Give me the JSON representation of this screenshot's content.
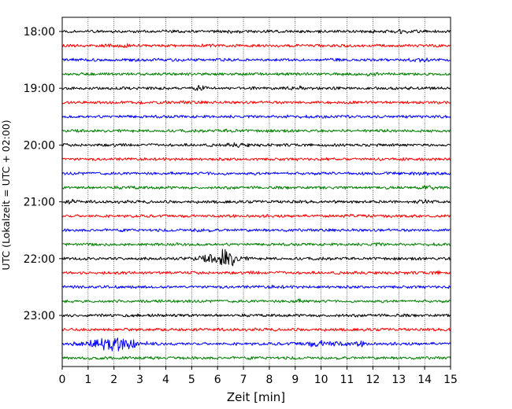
{
  "chart_data": {
    "type": "line",
    "title": "",
    "xlabel": "Zeit  [min]",
    "ylabel": "UTC (Lokalzeit = UTC + 02:00)",
    "xlim": [
      0,
      15
    ],
    "x_ticks": [
      "0",
      "1",
      "2",
      "3",
      "4",
      "5",
      "6",
      "7",
      "8",
      "9",
      "10",
      "11",
      "12",
      "13",
      "14",
      "15"
    ],
    "y_ticks": [
      "18:00",
      "19:00",
      "20:00",
      "21:00",
      "22:00",
      "23:00"
    ],
    "grid": "vertical dotted at each minute",
    "trace_interval_minutes": 15,
    "trace_colors": [
      "#000000",
      "#ff0000",
      "#0000ff",
      "#008000"
    ],
    "series": [
      {
        "start": "18:00",
        "color": "#000000",
        "amplitude": 1.0,
        "events": [
          {
            "t": 6.6,
            "a": 1.6,
            "w": 0.35
          },
          {
            "t": 13.2,
            "a": 1.7,
            "w": 0.4
          }
        ]
      },
      {
        "start": "18:15",
        "color": "#ff0000",
        "amplitude": 1.0,
        "events": [
          {
            "t": 2.3,
            "a": 1.5,
            "w": 0.5
          },
          {
            "t": 5.8,
            "a": 1.3,
            "w": 0.4
          }
        ]
      },
      {
        "start": "18:30",
        "color": "#0000ff",
        "amplitude": 1.0,
        "events": [
          {
            "t": 13.8,
            "a": 1.8,
            "w": 0.3
          },
          {
            "t": 3.0,
            "a": 1.2,
            "w": 0.4
          }
        ]
      },
      {
        "start": "18:45",
        "color": "#008000",
        "amplitude": 1.0,
        "events": [
          {
            "t": 12.0,
            "a": 1.4,
            "w": 0.3
          }
        ]
      },
      {
        "start": "19:00",
        "color": "#000000",
        "amplitude": 1.0,
        "events": [
          {
            "t": 5.3,
            "a": 2.0,
            "w": 0.2
          },
          {
            "t": 9.2,
            "a": 1.6,
            "w": 0.4
          }
        ]
      },
      {
        "start": "19:15",
        "color": "#ff0000",
        "amplitude": 1.0,
        "events": [
          {
            "t": 4.8,
            "a": 1.3,
            "w": 0.4
          }
        ]
      },
      {
        "start": "19:30",
        "color": "#0000ff",
        "amplitude": 1.0,
        "events": [
          {
            "t": 2.5,
            "a": 1.2,
            "w": 0.4
          },
          {
            "t": 8.7,
            "a": 1.3,
            "w": 0.3
          }
        ]
      },
      {
        "start": "19:45",
        "color": "#008000",
        "amplitude": 1.0,
        "events": [
          {
            "t": 6.5,
            "a": 1.5,
            "w": 0.25
          }
        ]
      },
      {
        "start": "20:00",
        "color": "#000000",
        "amplitude": 1.0,
        "events": [
          {
            "t": 6.8,
            "a": 1.7,
            "w": 0.4
          },
          {
            "t": 2.0,
            "a": 1.2,
            "w": 0.4
          }
        ]
      },
      {
        "start": "20:15",
        "color": "#ff0000",
        "amplitude": 1.0,
        "events": [
          {
            "t": 13.0,
            "a": 1.3,
            "w": 0.3
          }
        ]
      },
      {
        "start": "20:30",
        "color": "#0000ff",
        "amplitude": 1.0,
        "events": [
          {
            "t": 5.8,
            "a": 1.3,
            "w": 0.4
          },
          {
            "t": 14.0,
            "a": 1.2,
            "w": 0.3
          }
        ]
      },
      {
        "start": "20:45",
        "color": "#008000",
        "amplitude": 1.0,
        "events": [
          {
            "t": 14.2,
            "a": 1.9,
            "w": 0.25
          },
          {
            "t": 2.6,
            "a": 1.2,
            "w": 0.4
          }
        ]
      },
      {
        "start": "21:00",
        "color": "#000000",
        "amplitude": 1.0,
        "events": [
          {
            "t": 0.4,
            "a": 1.8,
            "w": 0.2
          },
          {
            "t": 14.0,
            "a": 1.8,
            "w": 0.3
          },
          {
            "t": 8.9,
            "a": 1.2,
            "w": 0.3
          }
        ]
      },
      {
        "start": "21:15",
        "color": "#ff0000",
        "amplitude": 1.0,
        "events": [
          {
            "t": 11.0,
            "a": 1.2,
            "w": 0.4
          }
        ]
      },
      {
        "start": "21:30",
        "color": "#0000ff",
        "amplitude": 1.0,
        "events": [
          {
            "t": 5.3,
            "a": 1.5,
            "w": 0.35
          }
        ]
      },
      {
        "start": "21:45",
        "color": "#008000",
        "amplitude": 1.0,
        "events": [
          {
            "t": 12.2,
            "a": 1.5,
            "w": 0.25
          },
          {
            "t": 4.0,
            "a": 1.1,
            "w": 0.4
          }
        ]
      },
      {
        "start": "22:00",
        "color": "#000000",
        "amplitude": 1.0,
        "events": [
          {
            "t": 6.1,
            "a": 3.6,
            "w": 0.75
          },
          {
            "t": 6.4,
            "a": 2.6,
            "w": 0.25
          }
        ]
      },
      {
        "start": "22:15",
        "color": "#ff0000",
        "amplitude": 1.0,
        "events": [
          {
            "t": 14.5,
            "a": 1.5,
            "w": 0.25
          },
          {
            "t": 7.5,
            "a": 1.2,
            "w": 0.4
          }
        ]
      },
      {
        "start": "22:30",
        "color": "#0000ff",
        "amplitude": 1.0,
        "events": [
          {
            "t": 8.2,
            "a": 1.3,
            "w": 0.4
          }
        ]
      },
      {
        "start": "22:45",
        "color": "#008000",
        "amplitude": 1.0,
        "events": [
          {
            "t": 9.1,
            "a": 1.6,
            "w": 0.3
          },
          {
            "t": 3.5,
            "a": 1.1,
            "w": 0.4
          }
        ]
      },
      {
        "start": "23:00",
        "color": "#000000",
        "amplitude": 1.0,
        "events": [
          {
            "t": 10.6,
            "a": 1.2,
            "w": 0.4
          },
          {
            "t": 13.0,
            "a": 1.1,
            "w": 0.3
          }
        ]
      },
      {
        "start": "23:15",
        "color": "#ff0000",
        "amplitude": 1.0,
        "events": [
          {
            "t": 15.0,
            "a": 1.4,
            "w": 0.2
          }
        ]
      },
      {
        "start": "23:30",
        "color": "#0000ff",
        "amplitude": 1.0,
        "events": [
          {
            "t": 2.0,
            "a": 5.2,
            "w": 0.95
          },
          {
            "t": 10.1,
            "a": 2.4,
            "w": 0.9
          },
          {
            "t": 11.6,
            "a": 1.9,
            "w": 0.25
          }
        ]
      },
      {
        "start": "23:45",
        "color": "#008000",
        "amplitude": 1.0,
        "events": [
          {
            "t": 4.0,
            "a": 1.1,
            "w": 0.5
          }
        ]
      }
    ]
  }
}
